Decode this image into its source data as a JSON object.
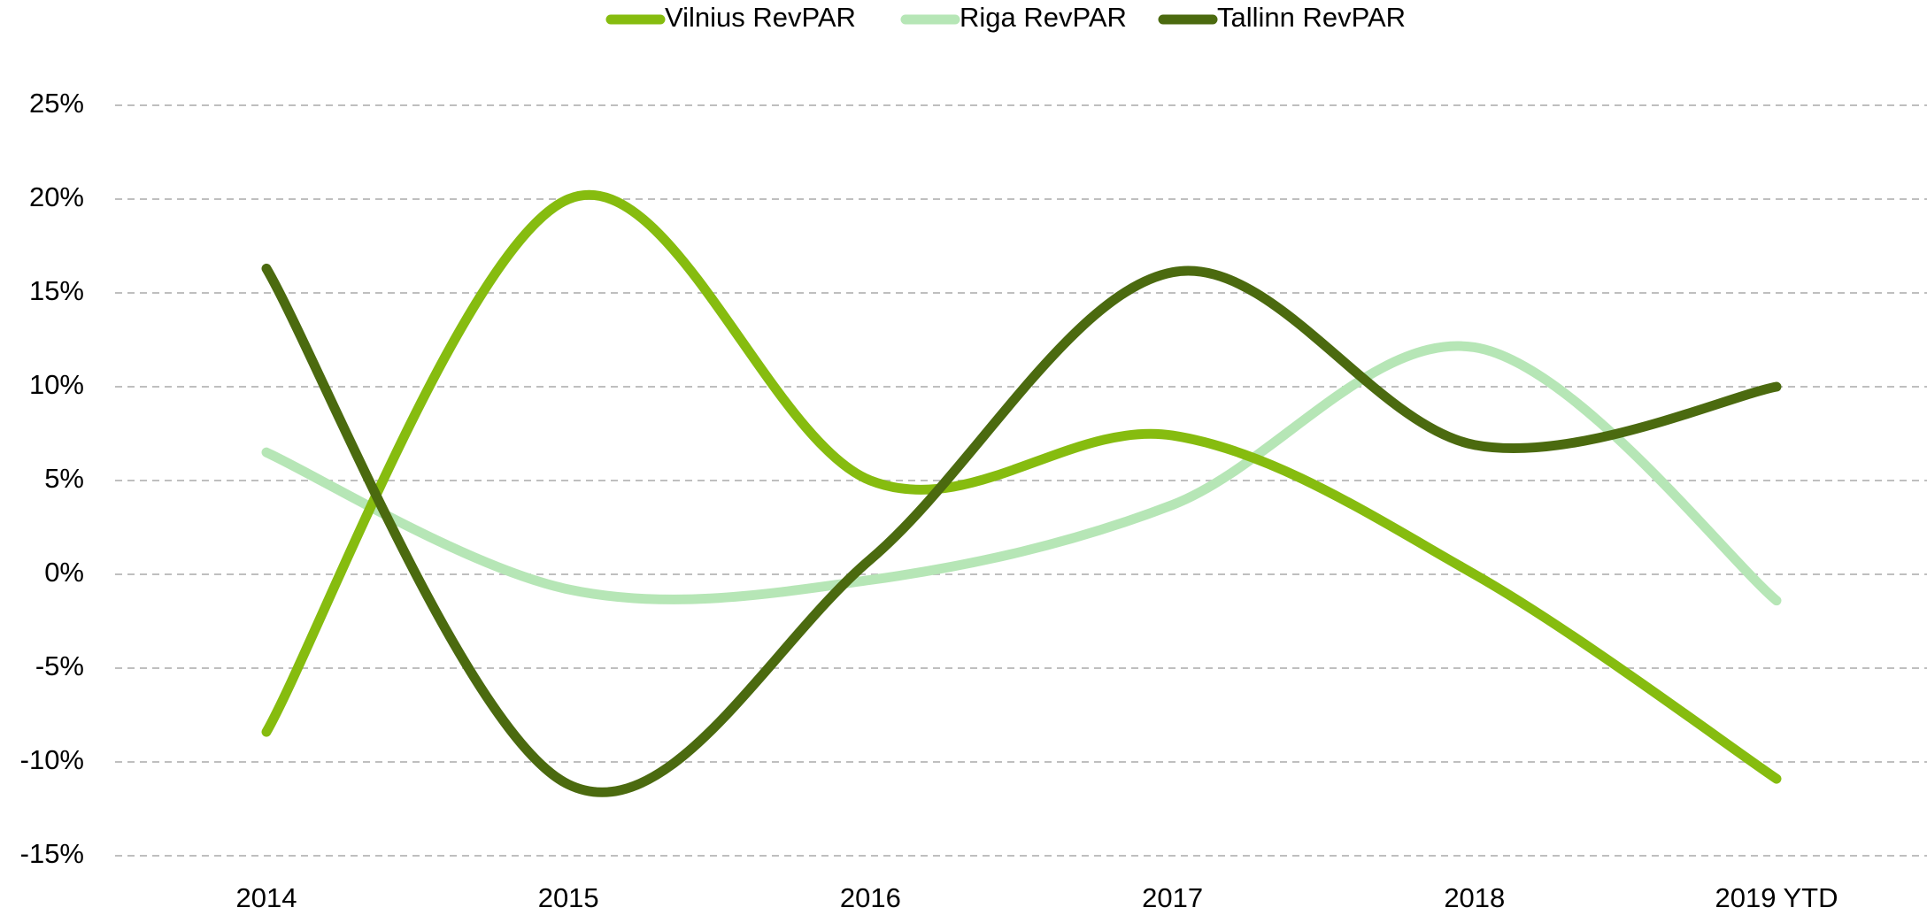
{
  "chart_data": {
    "type": "line",
    "categories": [
      "2014",
      "2015",
      "2016",
      "2017",
      "2018",
      "2019 YTD"
    ],
    "series": [
      {
        "name": "Vilnius RevPAR",
        "color": "#86bc0f",
        "values": [
          -8.4,
          20.0,
          5.0,
          7.4,
          0.0,
          -10.9
        ]
      },
      {
        "name": "Riga RevPAR",
        "color": "#b6e6b6",
        "values": [
          6.5,
          -0.8,
          -0.3,
          3.7,
          12.1,
          -1.4
        ]
      },
      {
        "name": "Tallinn RevPAR",
        "color": "#4b6a0f",
        "values": [
          16.3,
          -11.2,
          0.8,
          16.1,
          6.9,
          10.0
        ]
      }
    ],
    "ylim": [
      -15,
      25
    ],
    "yticks": [
      {
        "value": -15,
        "label": "-15%"
      },
      {
        "value": -10,
        "label": "-10%"
      },
      {
        "value": -5,
        "label": "-5%"
      },
      {
        "value": 0,
        "label": "0%"
      },
      {
        "value": 5,
        "label": "5%"
      },
      {
        "value": 10,
        "label": "10%"
      },
      {
        "value": 15,
        "label": "15%"
      },
      {
        "value": 20,
        "label": "20%"
      },
      {
        "value": 25,
        "label": "25%"
      }
    ],
    "grid": true,
    "legend": "top"
  }
}
